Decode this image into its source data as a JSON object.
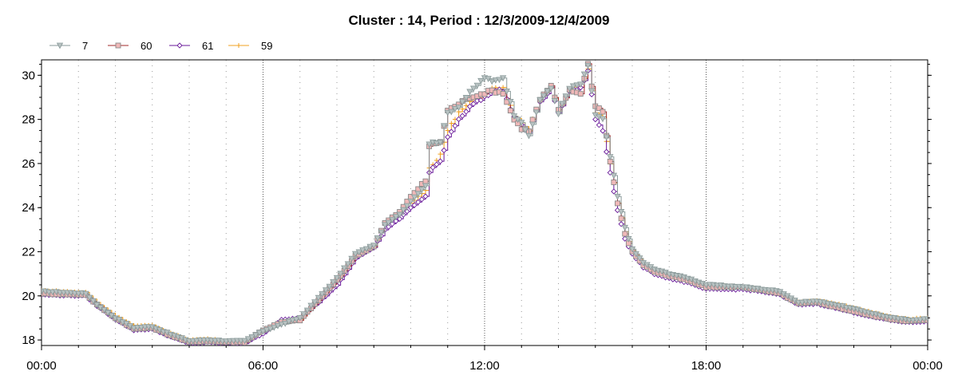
{
  "chart_data": {
    "type": "line",
    "title": "Cluster : 14, Period : 12/3/2009-12/4/2009",
    "xlabel": "",
    "ylabel": "",
    "x_tick_labels": [
      "00:00",
      "06:00",
      "12:00",
      "18:00",
      "00:00"
    ],
    "x_range_hours": [
      0,
      24
    ],
    "y_ticks": [
      18,
      20,
      22,
      24,
      26,
      28,
      30
    ],
    "ylim": [
      17.75,
      30.7
    ],
    "grid": "dotted",
    "legend_position": "top-left",
    "series": [
      {
        "name": "7",
        "color": "#8a9a9a",
        "marker": "triangle-down",
        "points": [
          [
            0,
            20.2
          ],
          [
            1.2,
            20.1
          ],
          [
            1.5,
            19.6
          ],
          [
            2.0,
            19.0
          ],
          [
            2.5,
            18.55
          ],
          [
            3.0,
            18.6
          ],
          [
            3.5,
            18.25
          ],
          [
            4.0,
            17.95
          ],
          [
            4.5,
            18.0
          ],
          [
            5.0,
            17.95
          ],
          [
            5.5,
            17.95
          ],
          [
            6.0,
            18.4
          ],
          [
            6.5,
            18.7
          ],
          [
            7.0,
            19.0
          ],
          [
            7.5,
            19.9
          ],
          [
            8.0,
            20.8
          ],
          [
            8.5,
            21.9
          ],
          [
            9.0,
            22.3
          ],
          [
            9.3,
            23.2
          ],
          [
            9.7,
            23.7
          ],
          [
            10.0,
            24.3
          ],
          [
            10.4,
            25.0
          ],
          [
            10.5,
            26.9
          ],
          [
            10.8,
            27.0
          ],
          [
            11.0,
            28.3
          ],
          [
            11.3,
            28.6
          ],
          [
            11.6,
            29.2
          ],
          [
            12.0,
            29.9
          ],
          [
            12.2,
            29.7
          ],
          [
            12.5,
            29.9
          ],
          [
            12.8,
            28.2
          ],
          [
            13.0,
            27.9
          ],
          [
            13.2,
            27.2
          ],
          [
            13.5,
            28.9
          ],
          [
            13.8,
            29.4
          ],
          [
            14.0,
            28.3
          ],
          [
            14.3,
            29.4
          ],
          [
            14.6,
            29.6
          ],
          [
            14.8,
            30.4
          ],
          [
            15.0,
            28.2
          ],
          [
            15.2,
            28.0
          ],
          [
            15.4,
            26.3
          ],
          [
            15.6,
            24.5
          ],
          [
            15.8,
            23.1
          ],
          [
            16.0,
            22.1
          ],
          [
            16.3,
            21.5
          ],
          [
            16.6,
            21.2
          ],
          [
            17.0,
            21.0
          ],
          [
            17.5,
            20.8
          ],
          [
            18.0,
            20.5
          ],
          [
            18.5,
            20.45
          ],
          [
            19.0,
            20.4
          ],
          [
            19.5,
            20.3
          ],
          [
            20.0,
            20.2
          ],
          [
            20.5,
            19.7
          ],
          [
            21.0,
            19.75
          ],
          [
            21.5,
            19.6
          ],
          [
            22.0,
            19.4
          ],
          [
            22.5,
            19.2
          ],
          [
            23.0,
            19.0
          ],
          [
            23.5,
            18.9
          ],
          [
            24.0,
            18.95
          ]
        ]
      },
      {
        "name": "60",
        "color": "#a02828",
        "marker": "square",
        "points": [
          [
            0,
            20.1
          ],
          [
            1.2,
            20.05
          ],
          [
            1.5,
            19.6
          ],
          [
            2.0,
            19.0
          ],
          [
            2.5,
            18.5
          ],
          [
            3.0,
            18.55
          ],
          [
            3.5,
            18.2
          ],
          [
            4.0,
            17.9
          ],
          [
            4.5,
            17.95
          ],
          [
            5.0,
            17.9
          ],
          [
            5.5,
            17.9
          ],
          [
            6.0,
            18.45
          ],
          [
            6.5,
            18.8
          ],
          [
            7.0,
            18.9
          ],
          [
            7.5,
            19.8
          ],
          [
            8.0,
            20.7
          ],
          [
            8.5,
            21.8
          ],
          [
            9.0,
            22.25
          ],
          [
            9.3,
            23.3
          ],
          [
            9.7,
            23.8
          ],
          [
            10.0,
            24.5
          ],
          [
            10.4,
            25.2
          ],
          [
            10.5,
            26.8
          ],
          [
            10.8,
            27.0
          ],
          [
            11.0,
            28.4
          ],
          [
            11.3,
            28.7
          ],
          [
            11.6,
            29.0
          ],
          [
            12.0,
            29.2
          ],
          [
            12.2,
            29.3
          ],
          [
            12.5,
            29.2
          ],
          [
            12.8,
            28.0
          ],
          [
            13.0,
            27.6
          ],
          [
            13.2,
            27.5
          ],
          [
            13.5,
            28.9
          ],
          [
            13.8,
            29.5
          ],
          [
            14.0,
            28.4
          ],
          [
            14.3,
            29.3
          ],
          [
            14.6,
            29.2
          ],
          [
            14.8,
            30.5
          ],
          [
            15.0,
            28.6
          ],
          [
            15.2,
            28.4
          ],
          [
            15.4,
            26.1
          ],
          [
            15.6,
            24.2
          ],
          [
            15.8,
            22.8
          ],
          [
            16.0,
            22.0
          ],
          [
            16.3,
            21.4
          ],
          [
            16.6,
            21.1
          ],
          [
            17.0,
            20.9
          ],
          [
            17.5,
            20.7
          ],
          [
            18.0,
            20.4
          ],
          [
            18.5,
            20.4
          ],
          [
            19.0,
            20.4
          ],
          [
            19.5,
            20.25
          ],
          [
            20.0,
            20.1
          ],
          [
            20.5,
            19.65
          ],
          [
            21.0,
            19.7
          ],
          [
            21.5,
            19.5
          ],
          [
            22.0,
            19.3
          ],
          [
            22.5,
            19.1
          ],
          [
            23.0,
            18.95
          ],
          [
            23.5,
            18.85
          ],
          [
            24.0,
            18.9
          ]
        ]
      },
      {
        "name": "61",
        "color": "#6a1a9a",
        "marker": "diamond",
        "points": [
          [
            0,
            20.05
          ],
          [
            1.2,
            20.0
          ],
          [
            1.5,
            19.55
          ],
          [
            2.0,
            18.95
          ],
          [
            2.5,
            18.45
          ],
          [
            3.0,
            18.5
          ],
          [
            3.5,
            18.15
          ],
          [
            4.0,
            17.85
          ],
          [
            4.5,
            17.9
          ],
          [
            5.0,
            17.85
          ],
          [
            5.5,
            17.85
          ],
          [
            6.0,
            18.3
          ],
          [
            6.5,
            18.9
          ],
          [
            7.0,
            19.0
          ],
          [
            7.5,
            19.7
          ],
          [
            8.0,
            20.5
          ],
          [
            8.5,
            21.7
          ],
          [
            9.0,
            22.2
          ],
          [
            9.3,
            23.0
          ],
          [
            9.7,
            23.5
          ],
          [
            10.0,
            24.0
          ],
          [
            10.4,
            24.5
          ],
          [
            10.5,
            25.6
          ],
          [
            10.8,
            26.1
          ],
          [
            11.0,
            27.2
          ],
          [
            11.3,
            28.0
          ],
          [
            11.6,
            28.6
          ],
          [
            12.0,
            29.0
          ],
          [
            12.2,
            29.3
          ],
          [
            12.5,
            29.3
          ],
          [
            12.8,
            28.1
          ],
          [
            13.0,
            27.7
          ],
          [
            13.2,
            27.4
          ],
          [
            13.5,
            28.8
          ],
          [
            13.8,
            29.4
          ],
          [
            14.0,
            28.3
          ],
          [
            14.3,
            29.3
          ],
          [
            14.6,
            29.4
          ],
          [
            14.8,
            30.2
          ],
          [
            15.0,
            28.0
          ],
          [
            15.2,
            27.5
          ],
          [
            15.4,
            25.6
          ],
          [
            15.6,
            23.9
          ],
          [
            15.8,
            22.6
          ],
          [
            16.0,
            21.9
          ],
          [
            16.3,
            21.3
          ],
          [
            16.6,
            21.0
          ],
          [
            17.0,
            20.8
          ],
          [
            17.5,
            20.6
          ],
          [
            18.0,
            20.3
          ],
          [
            18.5,
            20.3
          ],
          [
            19.0,
            20.3
          ],
          [
            19.5,
            20.2
          ],
          [
            20.0,
            20.05
          ],
          [
            20.5,
            19.6
          ],
          [
            21.0,
            19.65
          ],
          [
            21.5,
            19.45
          ],
          [
            22.0,
            19.25
          ],
          [
            22.5,
            19.05
          ],
          [
            23.0,
            18.9
          ],
          [
            23.5,
            18.8
          ],
          [
            24.0,
            18.85
          ]
        ]
      },
      {
        "name": "59",
        "color": "#f0a020",
        "marker": "plus",
        "points": [
          [
            0,
            20.25
          ],
          [
            1.2,
            20.15
          ],
          [
            1.5,
            19.7
          ],
          [
            2.0,
            19.1
          ],
          [
            2.5,
            18.65
          ],
          [
            3.0,
            18.65
          ],
          [
            3.5,
            18.3
          ],
          [
            4.0,
            18.0
          ],
          [
            4.5,
            18.05
          ],
          [
            5.0,
            17.95
          ],
          [
            5.5,
            17.95
          ],
          [
            6.0,
            18.35
          ],
          [
            6.5,
            18.75
          ],
          [
            7.0,
            18.95
          ],
          [
            7.5,
            19.85
          ],
          [
            8.0,
            20.75
          ],
          [
            8.5,
            21.85
          ],
          [
            9.0,
            22.3
          ],
          [
            9.3,
            23.2
          ],
          [
            9.7,
            23.7
          ],
          [
            10.0,
            24.2
          ],
          [
            10.4,
            24.8
          ],
          [
            10.5,
            25.8
          ],
          [
            10.8,
            26.4
          ],
          [
            11.0,
            27.5
          ],
          [
            11.3,
            28.3
          ],
          [
            11.6,
            28.8
          ],
          [
            12.0,
            29.1
          ],
          [
            12.2,
            29.4
          ],
          [
            12.5,
            29.4
          ],
          [
            12.8,
            28.2
          ],
          [
            13.0,
            27.8
          ],
          [
            13.2,
            27.5
          ],
          [
            13.5,
            28.9
          ],
          [
            13.8,
            29.45
          ],
          [
            14.0,
            28.4
          ],
          [
            14.3,
            29.35
          ],
          [
            14.6,
            29.45
          ],
          [
            14.8,
            30.3
          ],
          [
            15.0,
            28.3
          ],
          [
            15.2,
            28.1
          ],
          [
            15.4,
            26.0
          ],
          [
            15.6,
            24.2
          ],
          [
            15.8,
            22.9
          ],
          [
            16.0,
            22.05
          ],
          [
            16.3,
            21.45
          ],
          [
            16.6,
            21.1
          ],
          [
            17.0,
            20.95
          ],
          [
            17.5,
            20.75
          ],
          [
            18.0,
            20.45
          ],
          [
            18.5,
            20.45
          ],
          [
            19.0,
            20.4
          ],
          [
            19.5,
            20.3
          ],
          [
            20.0,
            20.15
          ],
          [
            20.5,
            19.7
          ],
          [
            21.0,
            19.8
          ],
          [
            21.5,
            19.65
          ],
          [
            22.0,
            19.45
          ],
          [
            22.5,
            19.25
          ],
          [
            23.0,
            19.05
          ],
          [
            23.5,
            18.95
          ],
          [
            24.0,
            19.0
          ]
        ]
      }
    ]
  }
}
